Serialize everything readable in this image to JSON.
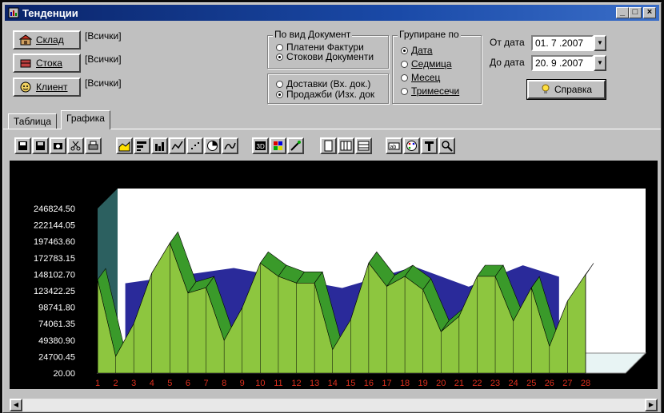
{
  "window": {
    "title": "Тенденции"
  },
  "filters": [
    {
      "label": "Склад",
      "value": "[Всички]"
    },
    {
      "label": "Стока",
      "value": "[Всички]"
    },
    {
      "label": "Клиент",
      "value": "[Всички]"
    }
  ],
  "doc_type": {
    "legend": "По вид Документ",
    "options": [
      "Платени Фактури",
      "Стокови Документи"
    ],
    "selected": 1
  },
  "direction": {
    "options": [
      "Доставки (Вх. док.)",
      "Продажби (Изх. док"
    ],
    "selected": 1
  },
  "grouping": {
    "legend": "Групиране по",
    "options": [
      "Дата",
      "Седмица",
      "Месец",
      "Тримесечи"
    ],
    "selected": 0
  },
  "dates": {
    "from_label": "От дата",
    "from_value": "01. 7 .2007",
    "to_label": "До дата",
    "to_value": "20. 9 .2007"
  },
  "help_button": "Справка",
  "tabs": [
    {
      "label": "Таблица",
      "active": false
    },
    {
      "label": "Графика",
      "active": true
    }
  ],
  "toolbar_icons": [
    "save-icon",
    "save-as-icon",
    "camera-icon",
    "scissors-icon",
    "printer-icon",
    "area-chart-icon",
    "horizontal-bar-icon",
    "bar-chart-icon",
    "line-chart-icon",
    "scatter-icon",
    "pie-chart-icon",
    "curve-chart-icon",
    "3d-toggle-icon",
    "color-palette-icon",
    "style-icon",
    "page-icon",
    "vertical-grid-icon",
    "horizontal-grid-icon",
    "data-labels-icon",
    "palette-icon",
    "tools-icon",
    "zoom-icon"
  ],
  "colors": {
    "front_series": "#8dc63f",
    "back_series": "#2a2a9a",
    "wall": "#2c6060",
    "x_label": "#e0301e"
  },
  "chart_data": {
    "type": "area",
    "categories": [
      "1",
      "2",
      "3",
      "4",
      "5",
      "6",
      "7",
      "8",
      "9",
      "10",
      "11",
      "12",
      "13",
      "14",
      "15",
      "16",
      "17",
      "18",
      "19",
      "20",
      "21",
      "22",
      "23",
      "24",
      "25",
      "26",
      "27",
      "28"
    ],
    "y_tick_labels": [
      "20.00",
      "24700.45",
      "49380.90",
      "74061.35",
      "98741.80",
      "123422.25",
      "148102.70",
      "172783.15",
      "197463.60",
      "222144.05",
      "246824.50"
    ],
    "ylim": [
      20,
      246824.5
    ],
    "series": [
      {
        "values": [
          140000,
          25000,
          74000,
          150000,
          195000,
          120000,
          128000,
          49000,
          98000,
          165000,
          145000,
          135000,
          135000,
          35000,
          80000,
          165000,
          130000,
          145000,
          125000,
          62000,
          85000,
          145000,
          145000,
          78000,
          128000,
          40000,
          108000,
          148000
        ]
      },
      {
        "values": [
          null,
          125000,
          null,
          null,
          null,
          null,
          null,
          148000,
          null,
          null,
          null,
          null,
          null,
          118000,
          null,
          null,
          null,
          150000,
          null,
          null,
          120000,
          null,
          null,
          152000,
          null,
          135000,
          null,
          null
        ]
      }
    ]
  }
}
